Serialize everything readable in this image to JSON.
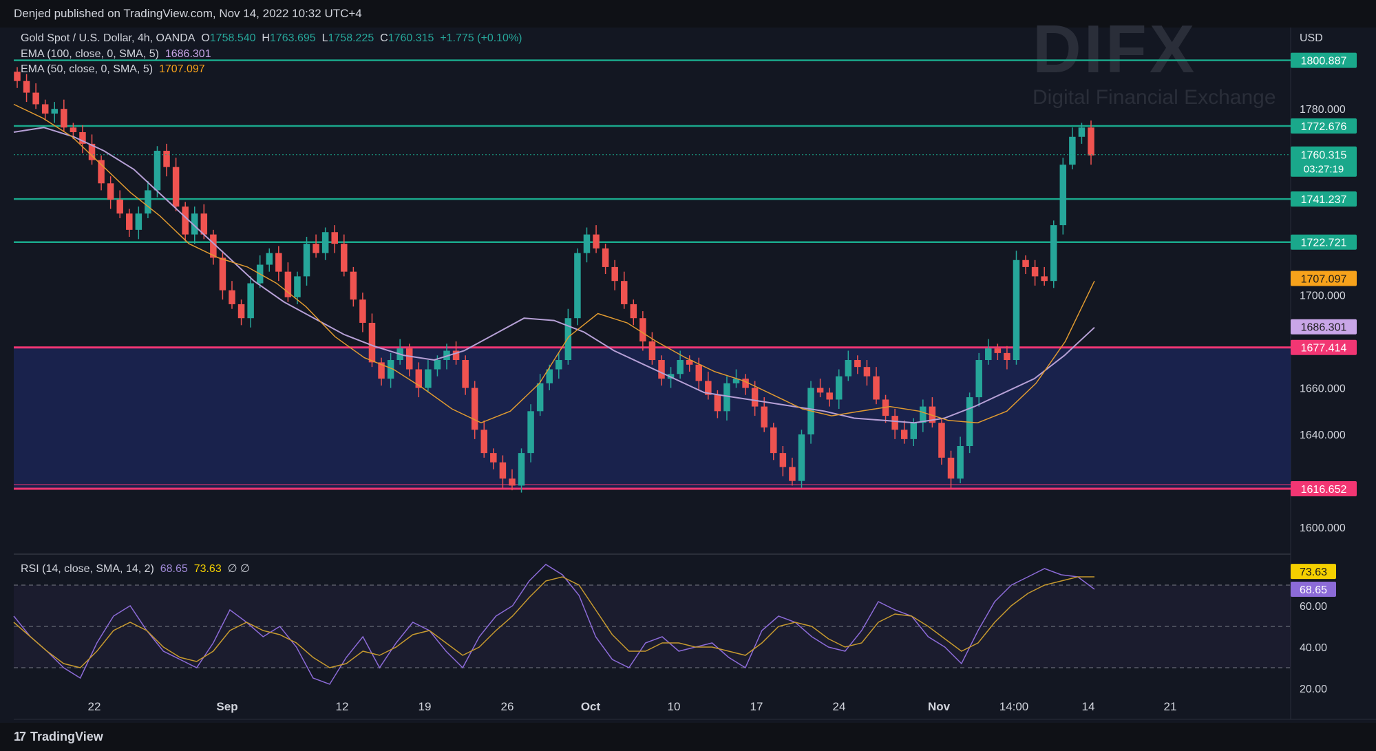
{
  "header": {
    "published": "Denjed published on TradingView.com, Nov 14, 2022 10:32 UTC+4"
  },
  "footer": {
    "brand": "TradingView"
  },
  "watermark": {
    "logo": "DIFX",
    "subtitle": "Digital Financial Exchange"
  },
  "legend": {
    "symbol": "Gold Spot / U.S. Dollar, 4h, OANDA",
    "o_label": "O",
    "o": "1758.540",
    "h_label": "H",
    "h": "1763.695",
    "l_label": "L",
    "l": "1758.225",
    "c_label": "C",
    "c": "1760.315",
    "change": "+1.775 (+0.10%)",
    "ema100_label": "EMA (100, close, 0, SMA, 5)",
    "ema100": "1686.301",
    "ema50_label": "EMA (50, close, 0, SMA, 5)",
    "ema50": "1707.097",
    "rsi_label": "RSI (14, close, SMA, 14, 2)",
    "rsi": "68.65",
    "rsi_sma": "73.63",
    "rsi_extra": "∅ ∅"
  },
  "colors": {
    "up": "#26a69a",
    "down": "#ef5350",
    "level": "#1aa88b",
    "zone_border": "#f23673",
    "zone_fill": "#1b2554",
    "ema100": "#b6a0d6",
    "ema50": "#e09a30",
    "rsi": "#8c6bd8",
    "rsi_sma": "#c79a2e"
  },
  "chart_data": {
    "type": "candlestick",
    "currency": "USD",
    "price_axis": {
      "ticks": [
        "1780.000",
        "1700.000",
        "1660.000",
        "1640.000",
        "1600.000"
      ],
      "range": [
        1590,
        1815
      ]
    },
    "time_axis": {
      "ticks": [
        "22",
        "Sep",
        "12",
        "19",
        "26",
        "Oct",
        "10",
        "17",
        "24",
        "Nov",
        "14:00",
        "14",
        "21"
      ]
    },
    "levels": [
      {
        "value": 1800.887,
        "label": "1800.887"
      },
      {
        "value": 1772.676,
        "label": "1772.676"
      },
      {
        "value": 1741.237,
        "label": "1741.237"
      },
      {
        "value": 1722.721,
        "label": "1722.721"
      }
    ],
    "zone": {
      "top": 1677.414,
      "bottom": 1616.652,
      "top_label": "1677.414",
      "bottom_label": "1616.652"
    },
    "last_price": {
      "value": 1760.315,
      "label": "1760.315",
      "countdown": "03:27:19"
    },
    "ema100_tag": "1686.301",
    "ema50_tag": "1707.097",
    "close_path": [
      1792,
      1787,
      1782,
      1778,
      1780,
      1772,
      1770,
      1765,
      1758,
      1748,
      1741,
      1735,
      1728,
      1735,
      1745,
      1762,
      1755,
      1738,
      1726,
      1735,
      1726,
      1716,
      1702,
      1696,
      1690,
      1705,
      1713,
      1718,
      1710,
      1699,
      1708,
      1722,
      1718,
      1727,
      1722,
      1710,
      1698,
      1688,
      1671,
      1664,
      1672,
      1677,
      1668,
      1660,
      1668,
      1672,
      1676,
      1672,
      1660,
      1642,
      1632,
      1628,
      1621,
      1618,
      1632,
      1650,
      1662,
      1668,
      1672,
      1690,
      1718,
      1726,
      1720,
      1712,
      1706,
      1696,
      1690,
      1680,
      1672,
      1664,
      1666,
      1672,
      1670,
      1663,
      1657,
      1650,
      1662,
      1664,
      1660,
      1652,
      1643,
      1632,
      1626,
      1620,
      1640,
      1660,
      1658,
      1655,
      1665,
      1672,
      1669,
      1665,
      1655,
      1648,
      1642,
      1638,
      1645,
      1652,
      1645,
      1630,
      1621,
      1635,
      1656,
      1672,
      1677,
      1675,
      1672,
      1715,
      1712,
      1708,
      1706,
      1730,
      1756,
      1768,
      1772,
      1760
    ],
    "ema100_path": [
      1770,
      1772,
      1768,
      1762,
      1754,
      1742,
      1730,
      1718,
      1706,
      1697,
      1690,
      1683,
      1678,
      1674,
      1672,
      1676,
      1683,
      1690,
      1689,
      1684,
      1676,
      1670,
      1664,
      1658,
      1656,
      1654,
      1652,
      1650,
      1647,
      1646,
      1645,
      1647,
      1652,
      1658,
      1664,
      1674,
      1686
    ],
    "ema50_path": [
      1782,
      1776,
      1768,
      1756,
      1744,
      1734,
      1722,
      1716,
      1712,
      1705,
      1695,
      1682,
      1673,
      1668,
      1660,
      1651,
      1645,
      1650,
      1662,
      1682,
      1692,
      1688,
      1680,
      1673,
      1667,
      1663,
      1657,
      1651,
      1648,
      1650,
      1652,
      1650,
      1646,
      1645,
      1650,
      1662,
      1680,
      1706
    ],
    "rsi": {
      "ticks": [
        "60.00",
        "40.00",
        "20.00"
      ],
      "range": [
        15,
        85
      ],
      "value_tag": "68.65",
      "sma_tag": "73.63",
      "rsi_path": [
        55,
        45,
        38,
        30,
        25,
        42,
        55,
        60,
        48,
        38,
        34,
        30,
        42,
        58,
        52,
        45,
        50,
        40,
        25,
        22,
        35,
        45,
        30,
        42,
        52,
        48,
        38,
        30,
        45,
        55,
        60,
        72,
        80,
        75,
        65,
        45,
        34,
        30,
        42,
        45,
        38,
        40,
        42,
        35,
        30,
        48,
        55,
        52,
        45,
        40,
        38,
        48,
        62,
        58,
        55,
        45,
        40,
        32,
        48,
        62,
        70,
        74,
        78,
        75,
        74,
        68
      ],
      "sma_path": [
        52,
        45,
        38,
        32,
        30,
        38,
        48,
        52,
        48,
        40,
        35,
        33,
        38,
        48,
        52,
        48,
        46,
        42,
        35,
        30,
        32,
        38,
        36,
        40,
        46,
        48,
        42,
        36,
        40,
        48,
        55,
        64,
        72,
        74,
        70,
        58,
        46,
        38,
        38,
        42,
        42,
        40,
        40,
        38,
        36,
        42,
        50,
        52,
        50,
        44,
        40,
        42,
        52,
        56,
        55,
        50,
        44,
        38,
        42,
        52,
        60,
        66,
        70,
        72,
        74,
        74
      ]
    }
  }
}
